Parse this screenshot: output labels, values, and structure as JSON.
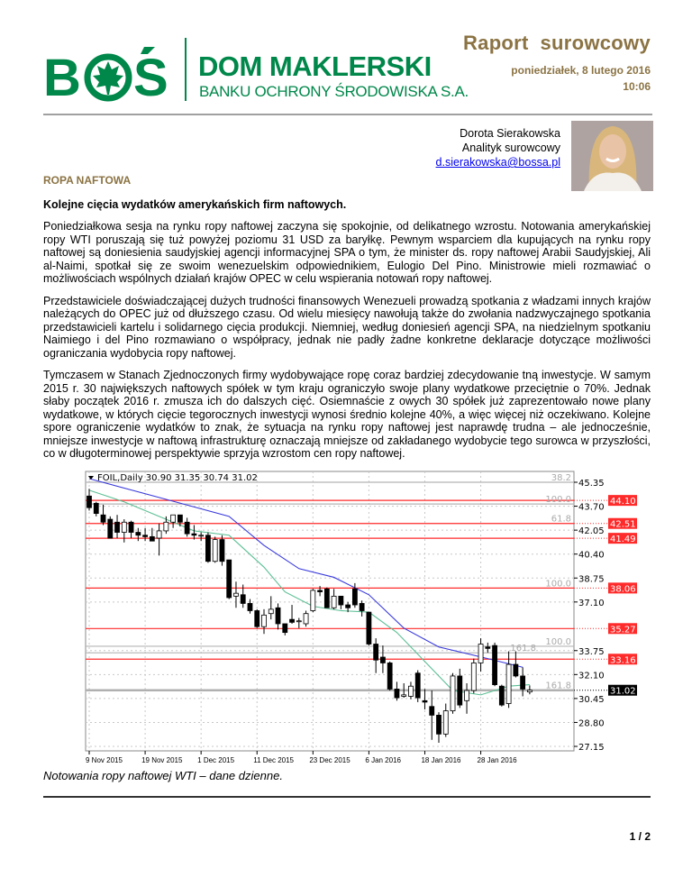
{
  "header": {
    "logo_text": "BOŚ",
    "brand_name": "DOM MAKLERSKI",
    "brand_subtitle": "BANKU OCHRONY ŚRODOWISKA S.A.",
    "report_title": "Raport  surowcowy",
    "date": "poniedziałek, 8 lutego 2016",
    "time": "10:06"
  },
  "author": {
    "name": "Dorota Sierakowska",
    "role": "Analityk surowcowy",
    "email": "d.sierakowska@bossa.pl"
  },
  "section_title": "ROPA NAFTOWA",
  "headline": "Kolejne cięcia wydatków amerykańskich firm naftowych.",
  "paragraphs": [
    "Poniedziałkowa sesja na rynku ropy naftowej zaczyna się spokojnie, od delikatnego wzrostu. Notowania amerykańskiej ropy WTI poruszają się tuż powyżej poziomu 31 USD za baryłkę. Pewnym wsparciem dla kupujących na rynku ropy naftowej są doniesienia saudyjskiej agencji informacyjnej SPA o tym, że minister ds. ropy naftowej Arabii Saudyjskiej, Ali al-Naimi, spotkał się  ze swoim wenezuelskim odpowiednikiem, Eulogio Del Pino. Ministrowie mieli rozmawiać o możliwościach wspólnych działań krajów OPEC w celu wspierania notowań ropy naftowej.",
    "Przedstawiciele doświadczającej dużych trudności finansowych Wenezueli prowadzą spotkania z władzami innych krajów należących do OPEC już od dłuższego czasu. Od wielu miesięcy nawołują także do zwołania nadzwyczajnego spotkania przedstawicieli kartelu i solidarnego cięcia produkcji. Niemniej, według doniesień agencji SPA, na niedzielnym spotkaniu Naimiego i del Pino rozmawiano o współpracy, jednak nie padły żadne konkretne deklaracje dotyczące możliwości ograniczania wydobycia ropy naftowej.",
    "Tymczasem w Stanach Zjednoczonych firmy wydobywające ropę coraz bardziej zdecydowanie tną inwestycje. W samym 2015 r. 30 największych naftowych spółek w tym kraju ograniczyło swoje plany wydatkowe przeciętnie o 70%. Jednak słaby początek 2016 r. zmusza ich do dalszych cięć. Osiemnaście z owych 30 spółek już zaprezentowało nowe plany wydatkowe, w których cięcie tegorocznych inwestycji wynosi średnio kolejne 40%, a więc więcej niż oczekiwano. Kolejne spore ograniczenie wydatków to znak, że sytuacja na rynku ropy naftowej jest naprawdę trudna – ale jednocześnie, mniejsze inwestycje w naftową infrastrukturę oznaczają mniejsze od zakładanego wydobycie tego surowca w przyszłości, co w długoterminowej perspektywie sprzyja wzrostom cen ropy naftowej."
  ],
  "chart_data": {
    "type": "candlestick",
    "legend": "FOIL,Daily  30.90 31.35 30.74 31.02",
    "ylim": [
      27.15,
      45.35
    ],
    "y_ticks": [
      "45.35",
      "43.70",
      "42.05",
      "40.40",
      "38.75",
      "37.10",
      "33.75",
      "32.10",
      "30.45",
      "28.80",
      "27.15"
    ],
    "x_ticks": [
      {
        "label": "9 Nov 2015",
        "index": 0
      },
      {
        "label": "19 Nov 2015",
        "index": 8
      },
      {
        "label": "1 Dec 2015",
        "index": 16
      },
      {
        "label": "11 Dec 2015",
        "index": 24
      },
      {
        "label": "23 Dec 2015",
        "index": 32
      },
      {
        "label": "6 Jan 2016",
        "index": 40
      },
      {
        "label": "18 Jan 2016",
        "index": 48
      },
      {
        "label": "28 Jan 2016",
        "index": 56
      }
    ],
    "grid": true,
    "candles": [
      [
        44.4,
        44.9,
        43.4,
        43.6
      ],
      [
        43.9,
        44.0,
        43.0,
        43.2
      ],
      [
        43.1,
        43.8,
        42.4,
        42.6
      ],
      [
        42.8,
        43.0,
        41.5,
        41.5
      ],
      [
        42.6,
        43.1,
        41.5,
        41.9
      ],
      [
        41.9,
        42.8,
        41.2,
        42.6
      ],
      [
        42.6,
        42.7,
        41.5,
        41.9
      ],
      [
        41.9,
        42.2,
        41.3,
        41.7
      ],
      [
        41.7,
        42.2,
        41.3,
        41.6
      ],
      [
        41.6,
        42.2,
        41.3,
        41.3
      ],
      [
        41.5,
        42.5,
        40.3,
        42.0
      ],
      [
        42.0,
        43.0,
        41.8,
        42.6
      ],
      [
        42.6,
        43.1,
        42.2,
        43.1
      ],
      [
        43.1,
        43.1,
        42.3,
        42.6
      ],
      [
        42.6,
        42.9,
        41.6,
        41.8
      ],
      [
        41.8,
        42.4,
        41.4,
        41.7
      ],
      [
        41.7,
        41.9,
        41.3,
        41.7
      ],
      [
        41.7,
        41.9,
        39.8,
        39.9
      ],
      [
        39.9,
        41.6,
        39.8,
        41.4
      ],
      [
        41.4,
        41.7,
        39.6,
        39.9
      ],
      [
        40.0,
        40.0,
        37.3,
        37.4
      ],
      [
        37.5,
        38.5,
        36.7,
        37.7
      ],
      [
        37.6,
        38.3,
        36.7,
        37.0
      ],
      [
        37.0,
        37.3,
        36.3,
        36.5
      ],
      [
        36.5,
        36.6,
        35.3,
        35.4
      ],
      [
        35.4,
        36.6,
        34.9,
        36.2
      ],
      [
        36.3,
        37.5,
        35.9,
        36.6
      ],
      [
        36.7,
        37.0,
        35.2,
        35.6
      ],
      [
        35.6,
        35.6,
        34.8,
        35.0
      ],
      [
        35.9,
        36.9,
        35.6,
        35.7
      ],
      [
        35.8,
        36.0,
        35.3,
        35.8
      ],
      [
        35.6,
        36.5,
        35.4,
        36.3
      ],
      [
        36.5,
        38.0,
        36.4,
        37.9
      ],
      [
        37.9,
        38.2,
        37.5,
        37.8
      ],
      [
        38.0,
        38.1,
        36.7,
        36.7
      ],
      [
        36.7,
        38.0,
        36.6,
        37.5
      ],
      [
        37.5,
        37.5,
        36.6,
        36.9
      ],
      [
        36.9,
        37.1,
        36.4,
        36.7
      ],
      [
        38.0,
        38.4,
        36.7,
        36.9
      ],
      [
        37.0,
        37.2,
        36.1,
        36.5
      ],
      [
        36.4,
        36.4,
        34.1,
        34.2
      ],
      [
        34.2,
        34.6,
        32.2,
        33.1
      ],
      [
        33.3,
        34.1,
        32.2,
        32.9
      ],
      [
        32.9,
        33.0,
        31.0,
        31.1
      ],
      [
        31.1,
        31.6,
        30.3,
        30.5
      ],
      [
        30.6,
        31.5,
        30.5,
        30.7
      ],
      [
        30.6,
        31.6,
        30.4,
        31.3
      ],
      [
        32.2,
        32.4,
        30.2,
        30.5
      ],
      [
        30.3,
        31.1,
        29.7,
        30.2
      ],
      [
        29.9,
        31.0,
        27.6,
        29.3
      ],
      [
        29.3,
        29.5,
        27.4,
        28.0
      ],
      [
        28.0,
        30.1,
        27.8,
        29.6
      ],
      [
        29.6,
        32.2,
        29.4,
        32.0
      ],
      [
        32.0,
        32.5,
        29.8,
        30.0
      ],
      [
        30.3,
        31.5,
        29.4,
        31.0
      ],
      [
        31.0,
        33.2,
        30.8,
        32.9
      ],
      [
        32.9,
        34.6,
        32.3,
        34.2
      ],
      [
        34.0,
        34.3,
        33.6,
        33.9
      ],
      [
        34.1,
        34.3,
        31.3,
        31.4
      ],
      [
        31.3,
        31.4,
        29.9,
        30.0
      ],
      [
        30.1,
        33.7,
        29.8,
        32.8
      ],
      [
        32.8,
        33.7,
        31.9,
        32.0
      ],
      [
        32.0,
        32.6,
        30.6,
        31.1
      ],
      [
        30.9,
        31.35,
        30.74,
        31.02
      ]
    ],
    "candle_fields": [
      "open",
      "high",
      "low",
      "close"
    ],
    "ma_slow": [
      [
        0,
        45.6
      ],
      [
        10,
        44.3
      ],
      [
        20,
        43.0
      ],
      [
        25,
        41.0
      ],
      [
        30,
        39.4
      ],
      [
        35,
        38.8
      ],
      [
        40,
        37.6
      ],
      [
        45,
        35.3
      ],
      [
        50,
        34.0
      ],
      [
        57,
        33.2
      ],
      [
        62,
        32.6
      ]
    ],
    "ma_fast": [
      [
        0,
        44.8
      ],
      [
        5,
        44.0
      ],
      [
        10,
        43.0
      ],
      [
        15,
        42.0
      ],
      [
        20,
        41.7
      ],
      [
        25,
        39.5
      ],
      [
        28,
        37.8
      ],
      [
        32,
        36.8
      ],
      [
        36,
        36.5
      ],
      [
        40,
        36.4
      ],
      [
        44,
        35.0
      ],
      [
        48,
        33.0
      ],
      [
        52,
        31.0
      ],
      [
        56,
        30.7
      ],
      [
        60,
        31.3
      ],
      [
        63,
        31.4
      ]
    ],
    "levels": [
      {
        "value": 45.35,
        "kind": "fib",
        "fib": "38.2"
      },
      {
        "value": 44.1,
        "kind": "resistance",
        "tag": "44.10"
      },
      {
        "value": 43.85,
        "kind": "fib",
        "fib": "100.0"
      },
      {
        "value": 42.51,
        "kind": "resistance",
        "tag": "42.51",
        "fib": "61.8"
      },
      {
        "value": 41.49,
        "kind": "resistance",
        "tag": "41.49"
      },
      {
        "value": 38.06,
        "kind": "resistance",
        "tag": "38.06",
        "fib": "100.0"
      },
      {
        "value": 35.27,
        "kind": "resistance",
        "tag": "35.27"
      },
      {
        "value": 34.05,
        "kind": "fib",
        "fib": "100.0"
      },
      {
        "value": 33.6,
        "kind": "fib",
        "fib": "161.8"
      },
      {
        "value": 33.16,
        "kind": "resistance",
        "tag": "33.16"
      },
      {
        "value": 31.02,
        "kind": "current",
        "tag": "31.02",
        "fib": "161.8"
      }
    ],
    "colors": {
      "resistance": "#ff2a2a",
      "fib": "#b4b4b4",
      "ma_slow": "#3a3adc",
      "ma_fast": "#5cbf95",
      "current": "#000000"
    }
  },
  "caption": "Notowania ropy naftowej WTI – dane dzienne.",
  "page_number": "1 / 2",
  "colors": {
    "brand_green": "#00874a",
    "report_brown": "#8b7343"
  }
}
